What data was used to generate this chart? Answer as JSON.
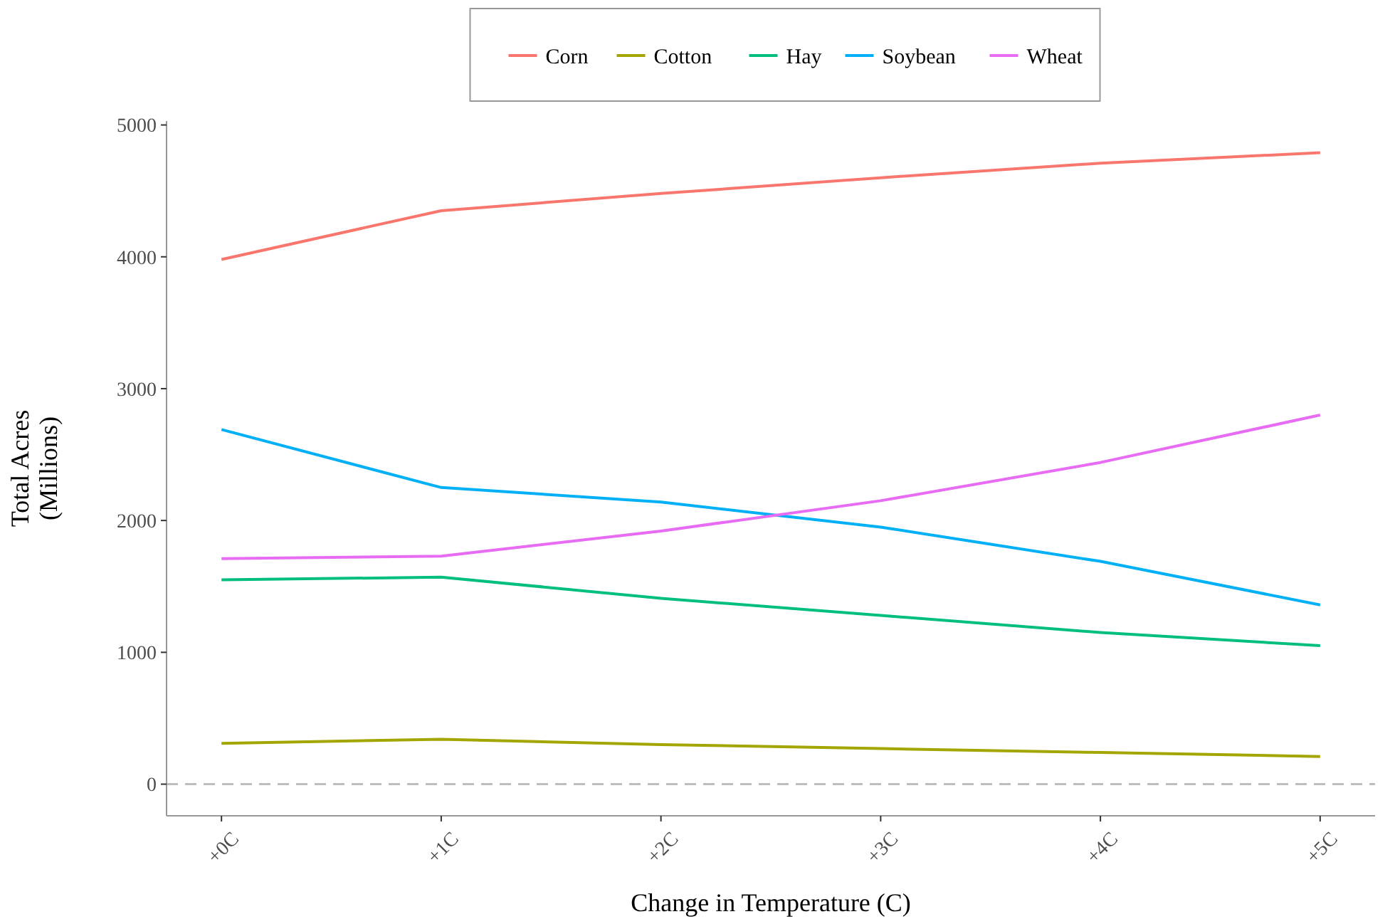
{
  "chart_data": {
    "type": "line",
    "xlabel": "Change in Temperature (C)",
    "ylabel": "Total Acres\n(Millions)",
    "categories": [
      "+0C",
      "+1C",
      "+2C",
      "+3C",
      "+4C",
      "+5C"
    ],
    "series": [
      {
        "name": "Corn",
        "color": "#f8766d",
        "values": [
          3980,
          4350,
          4480,
          4600,
          4710,
          4790
        ]
      },
      {
        "name": "Cotton",
        "color": "#a3a500",
        "values": [
          310,
          340,
          300,
          270,
          240,
          210
        ]
      },
      {
        "name": "Hay",
        "color": "#00bf7d",
        "values": [
          1550,
          1570,
          1410,
          1280,
          1150,
          1050
        ]
      },
      {
        "name": "Soybean",
        "color": "#00b0f6",
        "values": [
          2690,
          2250,
          2140,
          1950,
          1690,
          1360
        ]
      },
      {
        "name": "Wheat",
        "color": "#e76bf3",
        "values": [
          1710,
          1730,
          1920,
          2150,
          2440,
          2800
        ]
      }
    ],
    "ylim": [
      -240,
      5030
    ],
    "yticks": [
      0,
      1000,
      2000,
      3000,
      4000,
      5000
    ],
    "ref_lines": [
      {
        "axis": "y",
        "value": 0,
        "color": "#bebebe",
        "line_style": "dashed"
      }
    ],
    "grid": false,
    "legend": "top",
    "marker": "none",
    "line_style": "solid"
  }
}
